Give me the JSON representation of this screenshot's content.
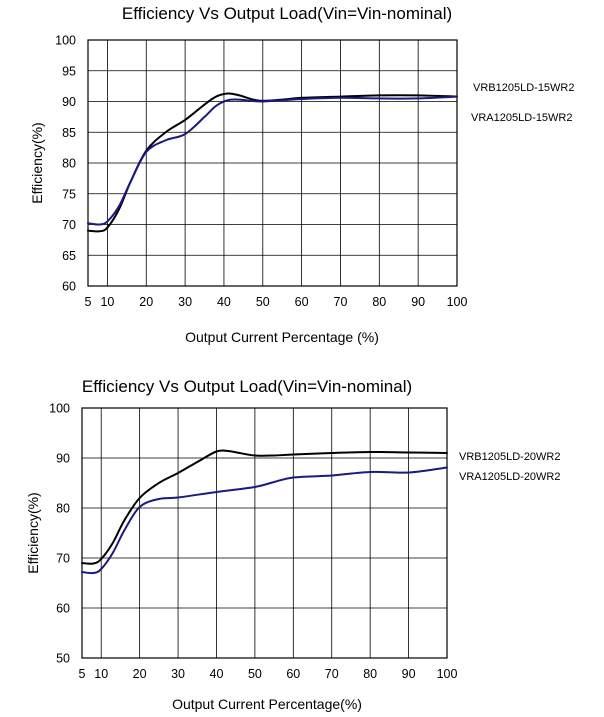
{
  "chart_data": [
    {
      "type": "line",
      "title": "Efficiency Vs Output Load(Vin=Vin-nominal)",
      "xlabel": "Output Current Percentage (%)",
      "ylabel": "Efficiency(%)",
      "x_ticks": [
        5,
        10,
        20,
        30,
        40,
        50,
        60,
        70,
        80,
        90,
        100
      ],
      "y_ticks": [
        60,
        65,
        70,
        75,
        80,
        85,
        90,
        95,
        100
      ],
      "xlim": [
        5,
        100
      ],
      "ylim": [
        60,
        100
      ],
      "grid": true,
      "legend_placement": "right",
      "series": [
        {
          "name": "VRB1205LD-15WR2",
          "color": "#000000",
          "x": [
            5,
            8,
            10,
            13,
            16,
            20,
            25,
            30,
            35,
            38,
            41,
            44,
            47,
            50,
            55,
            60,
            70,
            80,
            90,
            100
          ],
          "values": [
            69,
            68.9,
            69.5,
            72.5,
            77,
            82,
            85,
            87,
            89.5,
            90.8,
            91.3,
            91,
            90.4,
            90.1,
            90.3,
            90.6,
            90.8,
            91,
            91,
            90.8
          ]
        },
        {
          "name": "VRA1205LD-15WR2",
          "color": "#1a1a80",
          "x": [
            5,
            8,
            10,
            13,
            16,
            20,
            25,
            30,
            35,
            38,
            41,
            44,
            47,
            50,
            55,
            60,
            70,
            80,
            90,
            100
          ],
          "values": [
            70.2,
            70,
            70.5,
            73,
            77,
            81.8,
            83.7,
            84.7,
            87.5,
            89.3,
            90.2,
            90.3,
            90.1,
            90,
            90.2,
            90.4,
            90.6,
            90.5,
            90.5,
            90.8
          ]
        }
      ]
    },
    {
      "type": "line",
      "title": "Efficiency Vs Output Load(Vin=Vin-nominal)",
      "xlabel": "Output Current Percentage(%)",
      "ylabel": "Efficiency(%)",
      "x_ticks": [
        5,
        10,
        20,
        30,
        40,
        50,
        60,
        70,
        80,
        90,
        100
      ],
      "y_ticks": [
        50,
        60,
        70,
        80,
        90,
        100
      ],
      "xlim": [
        5,
        100
      ],
      "ylim": [
        50,
        100
      ],
      "grid": true,
      "legend_placement": "right",
      "series": [
        {
          "name": "VRB1205LD-20WR2",
          "color": "#000000",
          "x": [
            5,
            8,
            10,
            13,
            16,
            20,
            25,
            30,
            35,
            40,
            43,
            46,
            50,
            55,
            60,
            70,
            80,
            90,
            100
          ],
          "values": [
            69,
            68.9,
            69.8,
            73,
            77.5,
            82,
            85,
            87,
            89.2,
            91.3,
            91.4,
            91,
            90.5,
            90.5,
            90.7,
            91,
            91.2,
            91.1,
            91
          ]
        },
        {
          "name": "VRA1205LD-20WR2",
          "color": "#1a1a80",
          "x": [
            5,
            8,
            10,
            13,
            16,
            20,
            25,
            30,
            40,
            50,
            55,
            60,
            70,
            80,
            90,
            100
          ],
          "values": [
            67.2,
            67,
            67.8,
            71,
            75.5,
            80.2,
            81.8,
            82.1,
            83.2,
            84.2,
            85.2,
            86.1,
            86.5,
            87.2,
            87.1,
            88.1
          ]
        }
      ]
    }
  ]
}
